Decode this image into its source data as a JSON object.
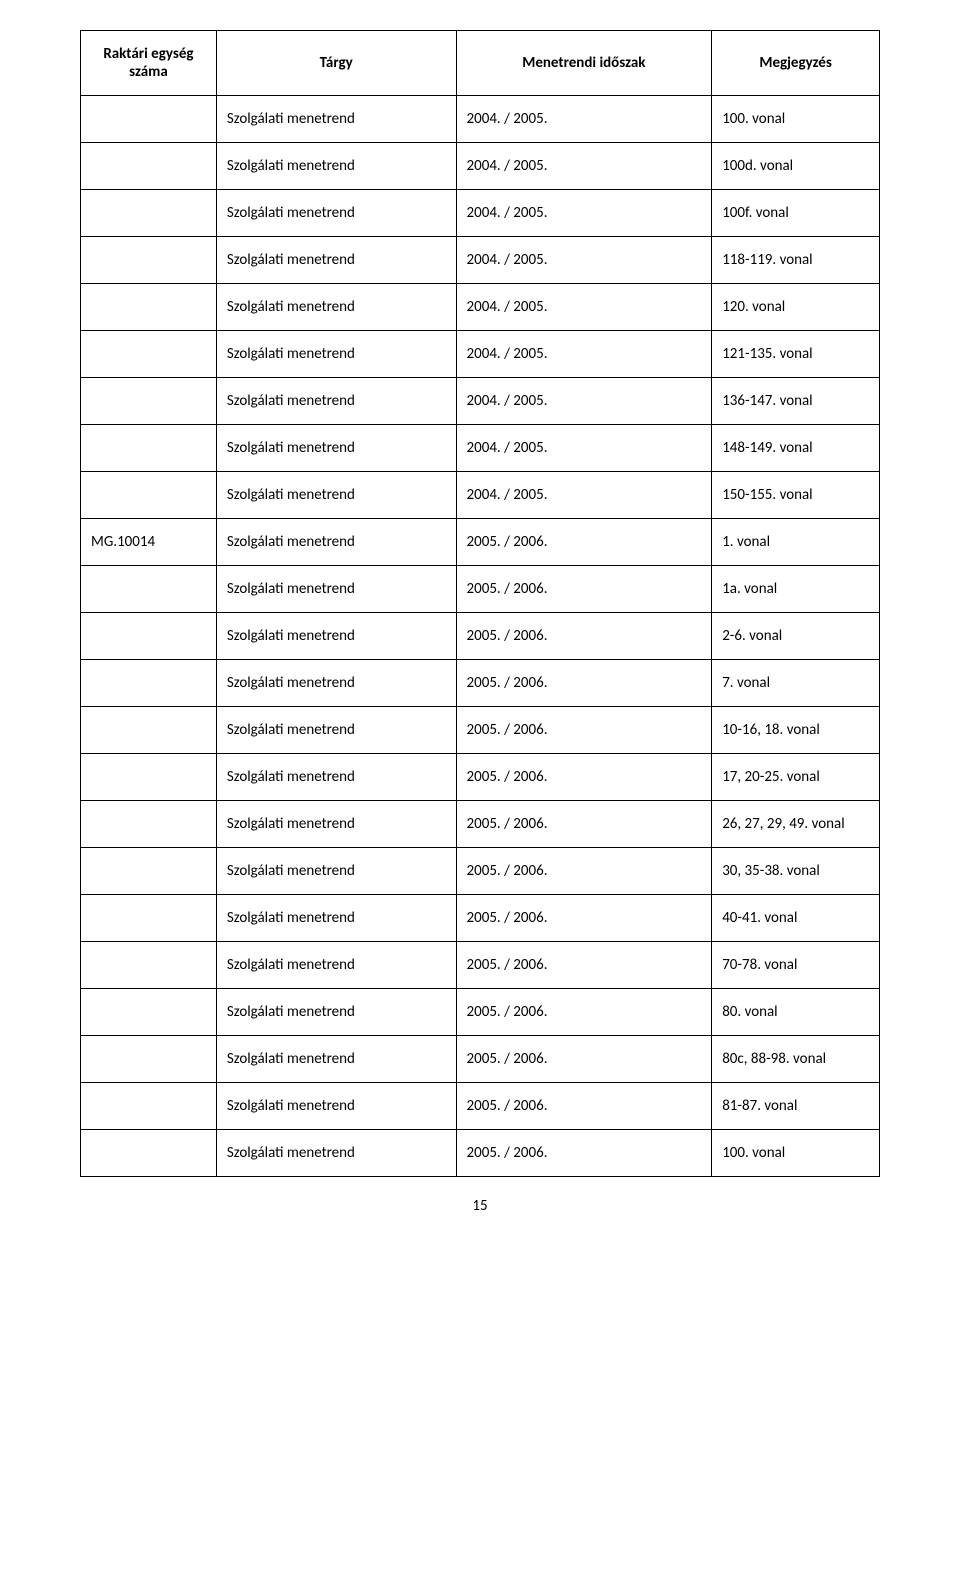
{
  "headers": [
    "Raktári egység száma",
    "Tárgy",
    "Menetrendi időszak",
    "Megjegyzés"
  ],
  "rows": [
    [
      "",
      "Szolgálati menetrend",
      "2004. / 2005.",
      "100. vonal"
    ],
    [
      "",
      "Szolgálati menetrend",
      "2004. / 2005.",
      "100d. vonal"
    ],
    [
      "",
      "Szolgálati menetrend",
      "2004. / 2005.",
      "100f. vonal"
    ],
    [
      "",
      "Szolgálati menetrend",
      "2004. / 2005.",
      "118-119. vonal"
    ],
    [
      "",
      "Szolgálati menetrend",
      "2004. / 2005.",
      "120. vonal"
    ],
    [
      "",
      "Szolgálati menetrend",
      "2004. / 2005.",
      "121-135. vonal"
    ],
    [
      "",
      "Szolgálati menetrend",
      "2004. / 2005.",
      "136-147. vonal"
    ],
    [
      "",
      "Szolgálati menetrend",
      "2004. / 2005.",
      "148-149. vonal"
    ],
    [
      "",
      "Szolgálati menetrend",
      "2004. / 2005.",
      "150-155. vonal"
    ],
    [
      "MG.10014",
      "Szolgálati menetrend",
      "2005. / 2006.",
      "1. vonal"
    ],
    [
      "",
      "Szolgálati menetrend",
      "2005. / 2006.",
      "1a. vonal"
    ],
    [
      "",
      "Szolgálati menetrend",
      "2005. / 2006.",
      "2-6. vonal"
    ],
    [
      "",
      "Szolgálati menetrend",
      "2005. / 2006.",
      "7. vonal"
    ],
    [
      "",
      "Szolgálati menetrend",
      "2005. / 2006.",
      "10-16, 18. vonal"
    ],
    [
      "",
      "Szolgálati menetrend",
      "2005. / 2006.",
      "17, 20-25. vonal"
    ],
    [
      "",
      "Szolgálati menetrend",
      "2005. / 2006.",
      "26, 27, 29, 49. vonal"
    ],
    [
      "",
      "Szolgálati menetrend",
      "2005. / 2006.",
      "30, 35-38. vonal"
    ],
    [
      "",
      "Szolgálati menetrend",
      "2005. / 2006.",
      "40-41. vonal"
    ],
    [
      "",
      "Szolgálati menetrend",
      "2005. / 2006.",
      "70-78. vonal"
    ],
    [
      "",
      "Szolgálati menetrend",
      "2005. / 2006.",
      "80. vonal"
    ],
    [
      "",
      "Szolgálati menetrend",
      "2005. / 2006.",
      "80c, 88-98. vonal"
    ],
    [
      "",
      "Szolgálati menetrend",
      "2005. / 2006.",
      "81-87. vonal"
    ],
    [
      "",
      "Szolgálati menetrend",
      "2005. / 2006.",
      "100. vonal"
    ]
  ],
  "page_number": "15"
}
